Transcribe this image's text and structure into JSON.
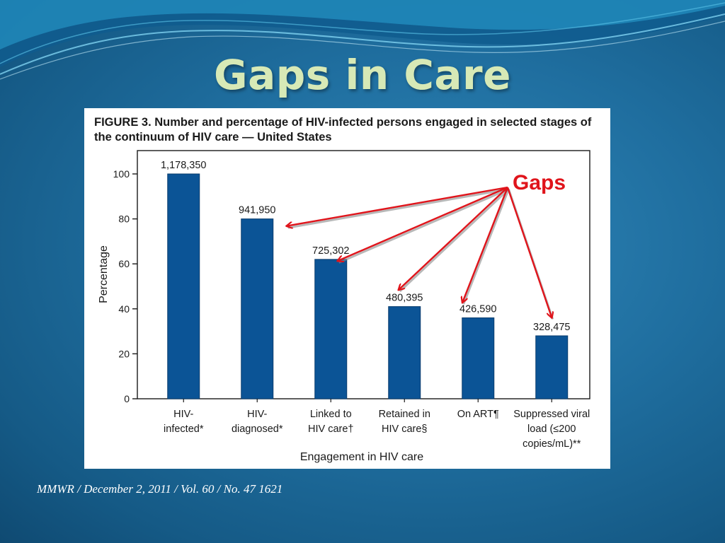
{
  "slide": {
    "title": "Gaps in Care",
    "source": "MMWR / December 2, 2011 / Vol. 60 / No. 47 1621"
  },
  "figure": {
    "caption": "FIGURE 3. Number and percentage of HIV-infected persons engaged in selected stages of the continuum of HIV care — United States",
    "annotation": "Gaps"
  },
  "colors": {
    "bar": "#0b5496",
    "arrow": "#e0141b",
    "title": "#d7e9b6"
  },
  "chart_data": {
    "type": "bar",
    "title": "FIGURE 3. Number and percentage of HIV-infected persons engaged in selected stages of the continuum of HIV care — United States",
    "xlabel": "Engagement in HIV care",
    "ylabel": "Percentage",
    "ylim": [
      0,
      100
    ],
    "yticks": [
      0,
      20,
      40,
      60,
      80,
      100
    ],
    "grid": false,
    "categories": [
      [
        "HIV-",
        "infected*"
      ],
      [
        "HIV-",
        "diagnosed*"
      ],
      [
        "Linked to",
        "HIV care†"
      ],
      [
        "Retained in",
        "HIV care§"
      ],
      [
        "On ART¶"
      ],
      [
        "Suppressed viral",
        "load (≤200",
        "copies/mL)**"
      ]
    ],
    "values": [
      100,
      80,
      62,
      41,
      36,
      28
    ],
    "value_labels": [
      "1,178,350",
      "941,950",
      "725,302",
      "480,395",
      "426,590",
      "328,475"
    ],
    "annotations": [
      {
        "text": "Gaps",
        "arrows_to_bars": [
          1,
          2,
          3,
          4,
          5
        ]
      }
    ]
  }
}
